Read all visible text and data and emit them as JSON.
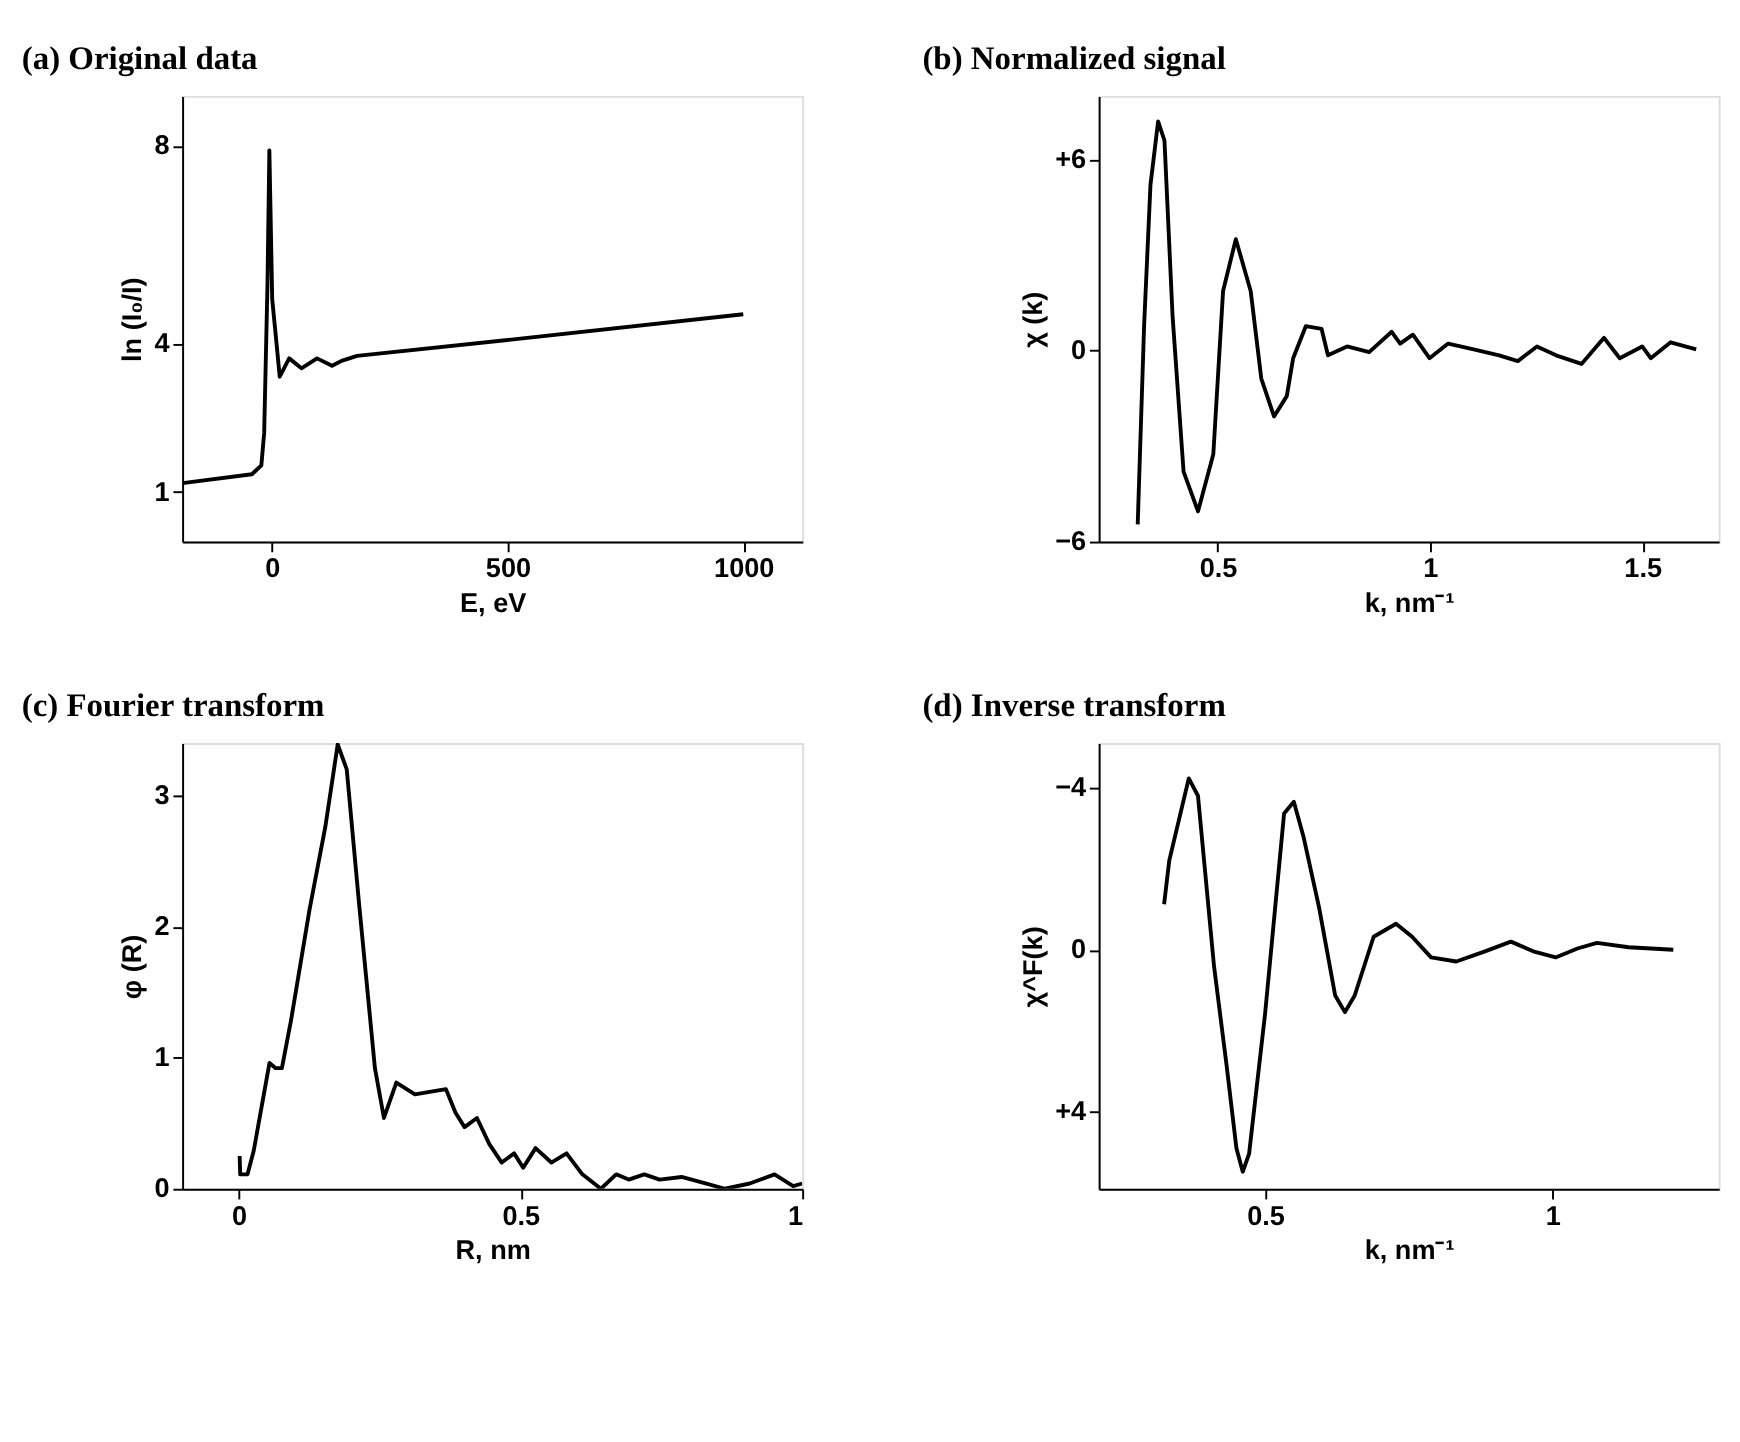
{
  "chart_data": [
    {
      "type": "line",
      "title": "(a) Original data",
      "xlabel": "E, eV",
      "ylabel": "ln (I₀/I)",
      "xlim": [
        -190,
        1125
      ],
      "ylim": [
        0,
        9
      ],
      "xticks": [
        0,
        500,
        1000
      ],
      "yticks": [
        1,
        4,
        8
      ],
      "grid": false,
      "series": [
        {
          "color": "#000000",
          "x": [
            -189,
            -42,
            -22,
            -16,
            -9,
            -5,
            1,
            17,
            37,
            63,
            96,
            128,
            148,
            181,
            508,
            1000
          ],
          "values": [
            1.18,
            1.36,
            1.54,
            2.2,
            5.2,
            7.9,
            4.9,
            3.33,
            3.7,
            3.5,
            3.7,
            3.55,
            3.65,
            3.75,
            4.08,
            4.59
          ]
        }
      ]
    },
    {
      "type": "line",
      "title": "(b) Normalized signal",
      "xlabel": "k, nm⁻¹",
      "ylabel": "χ (k)",
      "xlim": [
        0.22,
        1.68
      ],
      "ylim": [
        -6,
        8
      ],
      "xticks": [
        0.5,
        1,
        1.5
      ],
      "yticks": [
        {
          "value": 6,
          "label": "+6"
        },
        0,
        {
          "value": -6,
          "label": "−6"
        }
      ],
      "grid": false,
      "series": [
        {
          "color": "#000000",
          "x": [
            0.312,
            0.327,
            0.342,
            0.36,
            0.375,
            0.394,
            0.42,
            0.454,
            0.49,
            0.513,
            0.543,
            0.578,
            0.603,
            0.633,
            0.663,
            0.678,
            0.708,
            0.745,
            0.76,
            0.805,
            0.857,
            0.91,
            0.93,
            0.96,
            0.999,
            1.043,
            1.103,
            1.163,
            1.207,
            1.252,
            1.297,
            1.357,
            1.41,
            1.447,
            1.5,
            1.52,
            1.567,
            1.627
          ],
          "values": [
            -5.46,
            0.77,
            5.2,
            7.2,
            6.6,
            1.1,
            -3.8,
            -5.05,
            -3.26,
            1.87,
            3.5,
            1.87,
            -0.88,
            -2.07,
            -1.43,
            -0.24,
            0.77,
            0.68,
            -0.15,
            0.13,
            -0.05,
            0.59,
            0.22,
            0.5,
            -0.24,
            0.22,
            0.04,
            -0.15,
            -0.33,
            0.13,
            -0.15,
            -0.42,
            0.4,
            -0.24,
            0.13,
            -0.24,
            0.26,
            0.04
          ]
        }
      ]
    },
    {
      "type": "line",
      "title": "(c) Fourier transform",
      "xlabel": "R, nm",
      "ylabel": "φ (R)",
      "xlim": [
        -0.1,
        1.0
      ],
      "ylim": [
        0,
        3.4
      ],
      "xticks": [
        0,
        0.5,
        1
      ],
      "yticks": [
        0,
        1,
        2,
        3
      ],
      "grid": false,
      "series": [
        {
          "color": "#000000",
          "x": [
            0.002,
            0.003,
            0.016,
            0.027,
            0.055,
            0.066,
            0.077,
            0.093,
            0.126,
            0.154,
            0.176,
            0.192,
            0.214,
            0.242,
            0.258,
            0.28,
            0.313,
            0.368,
            0.385,
            0.401,
            0.423,
            0.445,
            0.467,
            0.489,
            0.505,
            0.527,
            0.555,
            0.582,
            0.61,
            0.643,
            0.67,
            0.692,
            0.72,
            0.747,
            0.786,
            0.83,
            0.863,
            0.907,
            0.951,
            0.984,
            1.0
          ],
          "values": [
            0.25,
            0.11,
            0.11,
            0.29,
            0.96,
            0.92,
            0.92,
            1.28,
            2.13,
            2.76,
            3.39,
            3.2,
            2.17,
            0.92,
            0.54,
            0.81,
            0.72,
            0.76,
            0.58,
            0.47,
            0.54,
            0.34,
            0.2,
            0.27,
            0.16,
            0.31,
            0.2,
            0.27,
            0.11,
            0,
            0.11,
            0.07,
            0.11,
            0.07,
            0.09,
            0.04,
            0,
            0.04,
            0.11,
            0.02,
            0.04
          ]
        }
      ]
    },
    {
      "type": "line",
      "title": "(d) Inverse transform",
      "xlabel": "k, nm⁻¹",
      "ylabel": "χ^F(k)",
      "xlim": [
        0.21,
        1.29
      ],
      "ylim": [
        5.9,
        -5.1
      ],
      "xticks": [
        0.5,
        1
      ],
      "yticks": [
        {
          "value": -4,
          "label": "−4"
        },
        0,
        {
          "value": 4,
          "label": "+4"
        }
      ],
      "grid": false,
      "series": [
        {
          "color": "#000000",
          "x": [
            0.324,
            0.333,
            0.367,
            0.383,
            0.411,
            0.433,
            0.45,
            0.461,
            0.472,
            0.5,
            0.533,
            0.55,
            0.567,
            0.594,
            0.622,
            0.639,
            0.656,
            0.689,
            0.728,
            0.756,
            0.789,
            0.833,
            0.883,
            0.928,
            0.967,
            1.006,
            1.044,
            1.078,
            1.133,
            1.211
          ],
          "values": [
            -1.12,
            -2.2,
            -4.23,
            -3.8,
            0.41,
            2.87,
            4.9,
            5.48,
            5.04,
            1.57,
            -3.36,
            -3.65,
            -2.78,
            -1.04,
            1.13,
            1.54,
            1.13,
            -0.32,
            -0.64,
            -0.32,
            0.19,
            0.29,
            0.04,
            -0.2,
            0.04,
            0.19,
            -0.03,
            -0.17,
            -0.06,
            0
          ]
        }
      ]
    }
  ]
}
